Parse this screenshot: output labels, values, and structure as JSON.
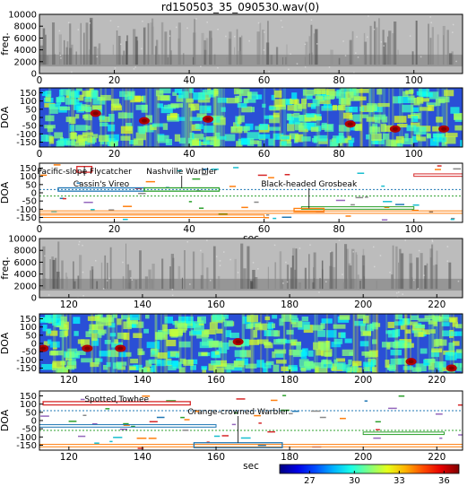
{
  "title": "rd150503_35_090530.wav(0)",
  "chart_data": [
    {
      "type": "heatmap",
      "name": "spectrogram",
      "ylabel": "freq.",
      "xlim": [
        0,
        113
      ],
      "ylim": [
        0,
        10000
      ],
      "xticks": [
        0,
        20,
        40,
        60,
        80,
        100
      ],
      "yticks": [
        0,
        2000,
        4000,
        6000,
        8000,
        10000
      ],
      "colormap": "gray"
    },
    {
      "type": "heatmap",
      "name": "doa-map",
      "ylabel": "DOA",
      "xlim": [
        0,
        113
      ],
      "ylim": [
        -180,
        180
      ],
      "xticks": [
        0,
        20,
        40,
        60,
        80,
        100
      ],
      "yticks": [
        -150,
        -100,
        -50,
        0,
        50,
        100,
        150
      ],
      "colormap": "jet",
      "hotspots": [
        {
          "x": 45,
          "doa": -10
        },
        {
          "x": 95,
          "doa": -70
        },
        {
          "x": 108,
          "doa": -70
        },
        {
          "x": 83,
          "doa": -40
        },
        {
          "x": 28,
          "doa": -20
        },
        {
          "x": 15,
          "doa": 25
        }
      ]
    },
    {
      "type": "scatter",
      "name": "localized-sources",
      "ylabel": "DOA",
      "xlabel": "sec",
      "xlim": [
        0,
        113
      ],
      "ylim": [
        -180,
        180
      ],
      "xticks": [
        0,
        20,
        40,
        60,
        80,
        100
      ],
      "yticks": [
        -150,
        -100,
        -50,
        0,
        50,
        100,
        150
      ],
      "annotations": [
        {
          "label": "Pacific-slope Flycatcher",
          "x0": 10,
          "x1": 14,
          "doa0": 125,
          "doa1": 160
        },
        {
          "label": "Cassin's Vireo",
          "x0": 5,
          "x1": 28,
          "doa0": 10,
          "doa1": 30
        },
        {
          "label": "Nashville Warbler",
          "x0": 28,
          "x1": 48,
          "doa0": 10,
          "doa1": 30
        },
        {
          "label": "Black-headed Grosbeak",
          "x0": 68,
          "x1": 76,
          "doa0": -115,
          "doa1": -95
        }
      ]
    },
    {
      "type": "heatmap",
      "name": "spectrogram-2",
      "ylabel": "freq.",
      "xlim": [
        112,
        227
      ],
      "ylim": [
        0,
        10000
      ],
      "xticks": [
        120,
        140,
        160,
        180,
        200,
        220
      ],
      "yticks": [
        0,
        2000,
        4000,
        6000,
        8000,
        10000
      ],
      "colormap": "gray"
    },
    {
      "type": "heatmap",
      "name": "doa-map-2",
      "ylabel": "DOA",
      "xlim": [
        112,
        227
      ],
      "ylim": [
        -180,
        180
      ],
      "xticks": [
        120,
        140,
        160,
        180,
        200,
        220
      ],
      "yticks": [
        -150,
        -100,
        -50,
        0,
        50,
        100,
        150
      ],
      "colormap": "jet",
      "hotspots": [
        {
          "x": 125,
          "doa": -30
        },
        {
          "x": 134,
          "doa": -30
        },
        {
          "x": 113,
          "doa": -30
        },
        {
          "x": 213,
          "doa": -110
        },
        {
          "x": 224,
          "doa": -150
        },
        {
          "x": 166,
          "doa": 10
        }
      ]
    },
    {
      "type": "scatter",
      "name": "localized-sources-2",
      "ylabel": "DOA",
      "xlabel": "sec",
      "xlim": [
        112,
        227
      ],
      "ylim": [
        -180,
        180
      ],
      "xticks": [
        120,
        140,
        160,
        180,
        200,
        220
      ],
      "yticks": [
        -150,
        -100,
        -50,
        0,
        50,
        100,
        150
      ],
      "annotations": [
        {
          "label": "Spotted Towhee",
          "x0": 113,
          "x1": 153,
          "doa0": 95,
          "doa1": 115
        },
        {
          "label": "Orange-crowned Warbler",
          "x0": 154,
          "x1": 178,
          "doa0": -165,
          "doa1": -135
        }
      ]
    }
  ],
  "colorbar": {
    "ticks": [
      27,
      30,
      33,
      36
    ],
    "range": [
      25,
      37
    ],
    "colormap": "jet"
  }
}
